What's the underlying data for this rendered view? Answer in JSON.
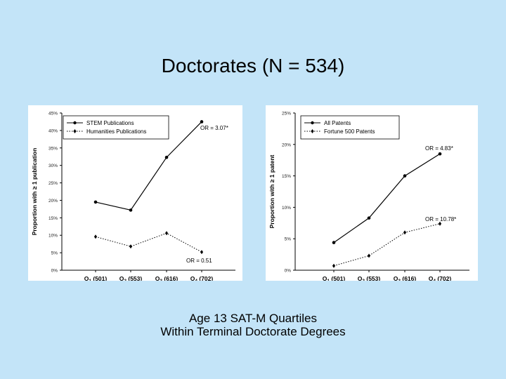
{
  "slide": {
    "title": "Doctorates (N = 534)",
    "footer_line1": "Age 13 SAT-M Quartiles",
    "footer_line2": "Within Terminal Doctorate Degrees"
  },
  "chart_data": [
    {
      "type": "line",
      "title": "",
      "ylabel": "Proportion with ≥ 1 publication",
      "xlabel": "",
      "categories": [
        "Q1 (501)",
        "Q2 (553)",
        "Q3 (616)",
        "Q4 (702)"
      ],
      "category_parts": [
        {
          "q": "Q",
          "sub": "1",
          "n": " (501)"
        },
        {
          "q": "Q",
          "sub": "2",
          "n": " (553)"
        },
        {
          "q": "Q",
          "sub": "3",
          "n": " (616)"
        },
        {
          "q": "Q",
          "sub": "4",
          "n": " (702)"
        }
      ],
      "ylim": [
        0,
        45
      ],
      "yticks": [
        "0%",
        "5%",
        "10%",
        "15%",
        "20%",
        "25%",
        "30%",
        "35%",
        "40%",
        "45%"
      ],
      "series": [
        {
          "name": "STEM Publications",
          "values": [
            19.5,
            17.2,
            32.3,
            42.5
          ],
          "style": "solid",
          "marker": "circle"
        },
        {
          "name": "Humanities Publications",
          "values": [
            9.6,
            6.8,
            10.6,
            5.2
          ],
          "style": "dotted",
          "marker": "diamond"
        }
      ],
      "annotations": [
        {
          "text": "OR = 3.07*",
          "series": 0
        },
        {
          "text": "OR = 0.51",
          "series": 1
        }
      ],
      "legend": "top-left",
      "grid": false
    },
    {
      "type": "line",
      "title": "",
      "ylabel": "Proportion with ≥ 1 patent",
      "xlabel": "",
      "categories": [
        "Q1 (501)",
        "Q2 (553)",
        "Q3 (616)",
        "Q4 (702)"
      ],
      "category_parts": [
        {
          "q": "Q",
          "sub": "1",
          "n": " (501)"
        },
        {
          "q": "Q",
          "sub": "2",
          "n": " (553)"
        },
        {
          "q": "Q",
          "sub": "3",
          "n": " (616)"
        },
        {
          "q": "Q",
          "sub": "4",
          "n": " (702)"
        }
      ],
      "ylim": [
        0,
        25
      ],
      "yticks": [
        "0%",
        "5%",
        "10%",
        "15%",
        "20%",
        "25%"
      ],
      "series": [
        {
          "name": "All Patents",
          "values": [
            4.4,
            8.3,
            15.0,
            18.5
          ],
          "style": "solid",
          "marker": "circle"
        },
        {
          "name": "Fortune 500 Patents",
          "values": [
            0.7,
            2.3,
            6.0,
            7.4
          ],
          "style": "dotted",
          "marker": "diamond"
        }
      ],
      "annotations": [
        {
          "text": "OR = 4.83*",
          "series": 0
        },
        {
          "text": "OR = 10.78*",
          "series": 1
        }
      ],
      "legend": "top-left",
      "grid": false
    }
  ]
}
